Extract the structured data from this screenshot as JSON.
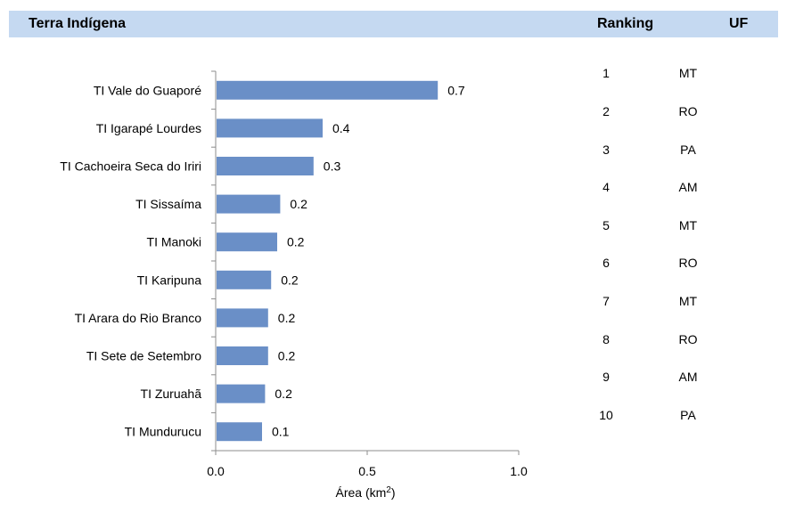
{
  "header": {
    "terra": "Terra Indígena",
    "ranking": "Ranking",
    "uf": "UF"
  },
  "chart_data": {
    "type": "bar",
    "orientation": "horizontal",
    "categories": [
      "TI Vale do Guaporé",
      "TI Igarapé Lourdes",
      "TI Cachoeira Seca do Iriri",
      "TI Sissaíma",
      "TI Manoki",
      "TI Karipuna",
      "TI Arara do Rio Branco",
      "TI Sete de Setembro",
      "TI Zuruahã",
      "TI Mundurucu"
    ],
    "values": [
      0.73,
      0.35,
      0.32,
      0.21,
      0.2,
      0.18,
      0.17,
      0.17,
      0.16,
      0.15
    ],
    "data_labels": [
      "0.7",
      "0.4",
      "0.3",
      "0.2",
      "0.2",
      "0.2",
      "0.2",
      "0.2",
      "0.2",
      "0.1"
    ],
    "xlim": [
      0,
      1.0
    ],
    "xticks": [
      "0.0",
      "0.5",
      "1.0"
    ],
    "xlabel": "Área (km",
    "xlabel_sup": "2",
    "xlabel_end": ")",
    "bar_color": "#6a8fc7",
    "grid": false
  },
  "table": {
    "rankings": [
      "1",
      "2",
      "3",
      "4",
      "5",
      "6",
      "7",
      "8",
      "9",
      "10"
    ],
    "ufs": [
      "MT",
      "RO",
      "PA",
      "AM",
      "MT",
      "RO",
      "MT",
      "RO",
      "AM",
      "PA"
    ]
  },
  "colors": {
    "header_bg": "#c5d9f1",
    "bar": "#6a8fc7",
    "axis": "#8c8c8c"
  }
}
